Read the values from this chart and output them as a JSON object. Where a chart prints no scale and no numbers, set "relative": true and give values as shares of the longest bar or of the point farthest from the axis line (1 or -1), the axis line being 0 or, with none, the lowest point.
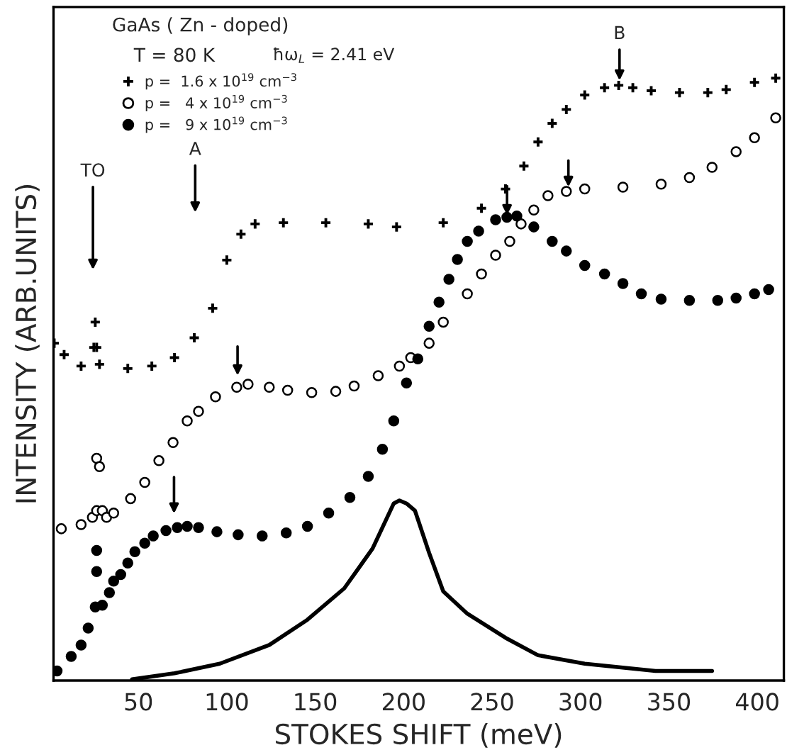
{
  "chart_data": {
    "type": "scatter",
    "title": "GaAs ( Zn - doped)",
    "subtitle": "T = 80 K",
    "xlabel": "STOKES SHIFT (meV)",
    "ylabel": "INTENSITY (ARB.UNITS)",
    "relative": true,
    "xlim": [
      2,
      415
    ],
    "xticks": [
      50,
      100,
      150,
      200,
      250,
      300,
      350,
      400
    ],
    "tick_labels": "x",
    "grid": false,
    "legend": "top left",
    "series": [
      {
        "name": "p =  1.6 x 10$^{19}$ cm$^{−3}$",
        "marker": "cross",
        "color": "#000000",
        "x": [
          2.4,
          8,
          17.6,
          24.8,
          25.6,
          26.4,
          28,
          44,
          57.6,
          70.4,
          81.6,
          92,
          100,
          108,
          116,
          132,
          156,
          180,
          196,
          222.4,
          244,
          257.6,
          268,
          276,
          284,
          292,
          302.4,
          313.6,
          321.6,
          329.6,
          340,
          356,
          372,
          382.4,
          398.4,
          410.4
        ],
        "values": [
          0.56,
          0.541,
          0.522,
          0.553,
          0.595,
          0.553,
          0.525,
          0.518,
          0.522,
          0.536,
          0.569,
          0.618,
          0.698,
          0.741,
          0.758,
          0.76,
          0.76,
          0.758,
          0.753,
          0.76,
          0.784,
          0.816,
          0.854,
          0.894,
          0.925,
          0.948,
          0.972,
          0.984,
          0.988,
          0.984,
          0.979,
          0.976,
          0.976,
          0.981,
          0.993,
          1.0
        ]
      },
      {
        "name": "p =   4 x 10$^{19}$ cm$^{−3}$",
        "marker": "circle",
        "color": "#ffffff",
        "x": [
          6.4,
          17.6,
          24,
          26.4,
          26.4,
          28,
          29.6,
          32,
          36,
          45.6,
          53.6,
          61.6,
          69.6,
          77.6,
          84,
          93.6,
          105.6,
          112,
          124,
          134.4,
          148,
          161.6,
          172,
          185.6,
          197.6,
          204,
          214.4,
          222.4,
          236,
          244,
          252,
          260,
          266.4,
          273.6,
          281.6,
          292,
          302.4,
          324,
          345.6,
          361.6,
          374.4,
          388,
          398.4,
          410.4
        ],
        "values": [
          0.252,
          0.259,
          0.271,
          0.282,
          0.369,
          0.355,
          0.282,
          0.271,
          0.278,
          0.302,
          0.329,
          0.365,
          0.395,
          0.431,
          0.447,
          0.471,
          0.487,
          0.492,
          0.487,
          0.482,
          0.478,
          0.48,
          0.489,
          0.506,
          0.522,
          0.536,
          0.56,
          0.595,
          0.642,
          0.675,
          0.706,
          0.729,
          0.758,
          0.781,
          0.805,
          0.812,
          0.816,
          0.819,
          0.824,
          0.835,
          0.852,
          0.878,
          0.901,
          0.934
        ]
      },
      {
        "name": "p =   9 x 10$^{19}$ cm$^{−3}$",
        "marker": "circle",
        "color": "#000000",
        "x": [
          4,
          12,
          17.6,
          21.6,
          25.6,
          26.4,
          26.4,
          29.6,
          33.6,
          36,
          40,
          44,
          48,
          53.6,
          58.4,
          65.6,
          72,
          77.6,
          84,
          94.4,
          106.4,
          120,
          133.6,
          145.6,
          157.6,
          169.6,
          180,
          188,
          194.4,
          201.6,
          208,
          214.4,
          220,
          225.6,
          230.4,
          236,
          242.4,
          252,
          258.4,
          264,
          273.6,
          284,
          292,
          302.4,
          313.6,
          324,
          334.4,
          345.6,
          361.6,
          377.6,
          388,
          398.4,
          406.4
        ],
        "values": [
          0.016,
          0.04,
          0.059,
          0.087,
          0.122,
          0.181,
          0.216,
          0.125,
          0.146,
          0.165,
          0.176,
          0.195,
          0.214,
          0.228,
          0.24,
          0.249,
          0.254,
          0.256,
          0.254,
          0.247,
          0.242,
          0.24,
          0.245,
          0.256,
          0.278,
          0.304,
          0.339,
          0.384,
          0.431,
          0.494,
          0.534,
          0.588,
          0.628,
          0.666,
          0.699,
          0.729,
          0.746,
          0.765,
          0.769,
          0.771,
          0.753,
          0.729,
          0.713,
          0.689,
          0.675,
          0.659,
          0.642,
          0.633,
          0.631,
          0.631,
          0.635,
          0.642,
          0.649
        ]
      },
      {
        "type": "line",
        "marker": "none",
        "line_style": "solid",
        "color": "#000000",
        "x": [
          46.4,
          70.4,
          96,
          124,
          145.6,
          166.4,
          182.4,
          194.4,
          197.6,
          201.6,
          206.4,
          214.4,
          222.4,
          236,
          257.6,
          276,
          302.4,
          342.4,
          374.4
        ],
        "values": [
          0.002,
          0.012,
          0.028,
          0.059,
          0.101,
          0.153,
          0.219,
          0.294,
          0.299,
          0.294,
          0.282,
          0.212,
          0.148,
          0.111,
          0.071,
          0.042,
          0.028,
          0.016,
          0.016
        ]
      }
    ],
    "annotations": [
      "ħω$_{L}$ = 2.41 eV",
      "TO",
      "A",
      "B"
    ]
  }
}
